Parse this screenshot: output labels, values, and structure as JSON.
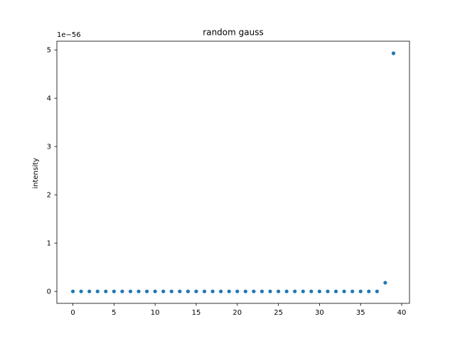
{
  "chart_data": {
    "type": "scatter",
    "title": "random gauss",
    "xlabel": "",
    "ylabel": "intensity",
    "offset_label": "1e−56",
    "xlim": [
      -1.95,
      40.95
    ],
    "ylim": [
      -0.247,
      5.18
    ],
    "x_ticks": [
      0,
      5,
      10,
      15,
      20,
      25,
      30,
      35,
      40
    ],
    "y_ticks": [
      0,
      1,
      2,
      3,
      4,
      5
    ],
    "x_tick_labels": [
      "0",
      "5",
      "10",
      "15",
      "20",
      "25",
      "30",
      "35",
      "40"
    ],
    "y_tick_labels": [
      "0",
      "1",
      "2",
      "3",
      "4",
      "5"
    ],
    "grid": false,
    "legend": "none",
    "marker_color": "#1f77b4",
    "x": [
      0,
      1,
      2,
      3,
      4,
      5,
      6,
      7,
      8,
      9,
      10,
      11,
      12,
      13,
      14,
      15,
      16,
      17,
      18,
      19,
      20,
      21,
      22,
      23,
      24,
      25,
      26,
      27,
      28,
      29,
      30,
      31,
      32,
      33,
      34,
      35,
      36,
      37,
      38,
      39
    ],
    "y": [
      0,
      0,
      0,
      0,
      0,
      0,
      0,
      0,
      0,
      0,
      0,
      0,
      0,
      0,
      0,
      0,
      0,
      0,
      0,
      0,
      0,
      0,
      0,
      0,
      0,
      0,
      0,
      0,
      0,
      0,
      0,
      0,
      0,
      0,
      0,
      0,
      0,
      0,
      0.18,
      4.93
    ]
  }
}
